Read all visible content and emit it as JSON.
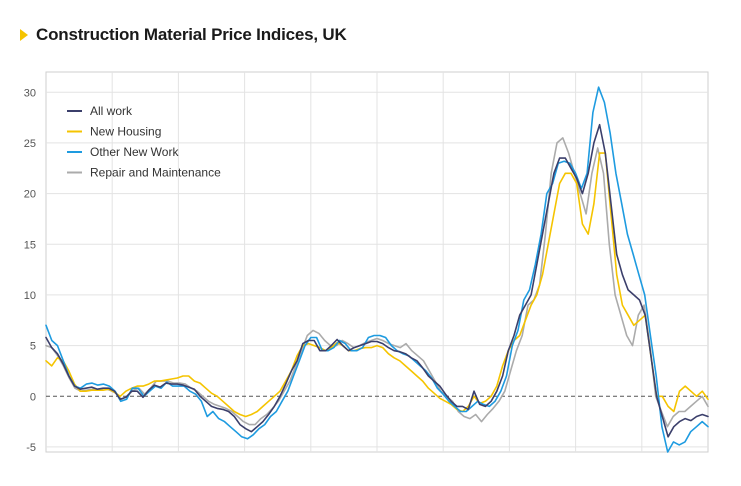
{
  "chart_data": {
    "type": "line",
    "title": "Construction Material Price Indices, UK",
    "xlabel": "",
    "ylabel": "",
    "ylim": [
      -5.5,
      32
    ],
    "yticks": [
      -5,
      0,
      5,
      10,
      15,
      20,
      25,
      30
    ],
    "grid": true,
    "legend_position": "top-left",
    "colors": {
      "All work": "#3b3f6b",
      "New Housing": "#f5c400",
      "Other New Work": "#1e9be0",
      "Repair and Maintenance": "#ababab",
      "zero_line": "#555555",
      "grid": "#e3e3e3",
      "axis": "#cfcfcf"
    },
    "series": [
      {
        "name": "All work",
        "values": [
          5.8,
          4.8,
          4.2,
          3.2,
          2,
          1,
          0.7,
          0.8,
          0.9,
          0.7,
          0.8,
          0.8,
          0.5,
          -0.3,
          -0.1,
          0.5,
          0.5,
          -0.1,
          0.6,
          1.1,
          0.9,
          1.3,
          1.2,
          1.2,
          1.1,
          0.9,
          0.7,
          0,
          -0.5,
          -1,
          -1.2,
          -1.3,
          -1.5,
          -2,
          -2.8,
          -3.2,
          -3.5,
          -3,
          -2.5,
          -1.8,
          -1,
          0,
          1.2,
          2.5,
          3.5,
          5.2,
          5.5,
          5.5,
          4.5,
          4.5,
          5,
          5.6,
          5,
          4.5,
          4.8,
          5,
          5.2,
          5.4,
          5.4,
          5.2,
          4.8,
          4.5,
          4.4,
          4.2,
          3.8,
          3.5,
          2.8,
          2,
          1.5,
          1,
          0.2,
          -0.5,
          -1,
          -1,
          -1.3,
          0.5,
          -0.8,
          -1,
          -0.5,
          0.5,
          2,
          4.5,
          6,
          8,
          9,
          10,
          13,
          16,
          19,
          22,
          23.5,
          23.5,
          22.5,
          21.5,
          20,
          22,
          25,
          26.8,
          24,
          19,
          14,
          12,
          10.5,
          10,
          9.5,
          8,
          4,
          0,
          -2,
          -4,
          -3,
          -2.5,
          -2.2,
          -2.4,
          -2,
          -1.8,
          -2
        ]
      },
      {
        "name": "New Housing",
        "values": [
          3.5,
          3,
          3.8,
          3.5,
          2.5,
          1.2,
          0.5,
          0.5,
          0.6,
          0.6,
          0.6,
          0.7,
          0.4,
          0,
          0.5,
          0.8,
          1,
          1,
          1.2,
          1.5,
          1.5,
          1.6,
          1.7,
          1.8,
          2,
          2,
          1.5,
          1.3,
          0.8,
          0.3,
          0,
          -0.5,
          -1,
          -1.5,
          -1.8,
          -2,
          -1.8,
          -1.5,
          -1,
          -0.5,
          0,
          0.5,
          1.5,
          2.5,
          4,
          5,
          5.2,
          5,
          4.8,
          4.5,
          4.8,
          5.3,
          5,
          4.5,
          4.5,
          4.7,
          4.8,
          4.8,
          5,
          4.8,
          4.2,
          3.8,
          3.5,
          3,
          2.5,
          2,
          1.5,
          0.8,
          0.3,
          -0.2,
          -0.5,
          -0.8,
          -1.3,
          -1.5,
          -1,
          0,
          -0.7,
          -0.5,
          0,
          1,
          3,
          4.5,
          5.5,
          6,
          7.5,
          9,
          10,
          12,
          15,
          18,
          21,
          22,
          22,
          21,
          17,
          16,
          19,
          24,
          24,
          18,
          12,
          9,
          8,
          7,
          7.5,
          8,
          4,
          0,
          0,
          -1,
          -1.5,
          0.5,
          1,
          0.5,
          0,
          0.5,
          -0.3
        ]
      },
      {
        "name": "Other New Work",
        "values": [
          7,
          5.5,
          5,
          3.5,
          2,
          1,
          0.8,
          1.2,
          1.3,
          1.1,
          1.2,
          1,
          0.5,
          -0.5,
          -0.3,
          0.8,
          0.8,
          0,
          0.5,
          1,
          0.8,
          1.4,
          1,
          1,
          1,
          0.5,
          0.2,
          -0.5,
          -2,
          -1.5,
          -2.2,
          -2.5,
          -3,
          -3.5,
          -4,
          -4.2,
          -3.8,
          -3.2,
          -2.8,
          -2,
          -1.5,
          -0.5,
          0.5,
          2,
          3.5,
          5,
          5.8,
          5.8,
          4.5,
          4.5,
          4.8,
          5.5,
          5.2,
          4.5,
          4.5,
          4.8,
          5.8,
          6,
          6,
          5.8,
          5,
          4.5,
          4.2,
          4,
          3.5,
          3,
          2.5,
          1.8,
          0.8,
          0.2,
          -0.5,
          -1,
          -1.5,
          -1.5,
          -1,
          -0.5,
          -0.8,
          -1,
          -0.5,
          0.5,
          2,
          5,
          6.5,
          9.5,
          10.5,
          13,
          16,
          20,
          21,
          23,
          23.2,
          23,
          22,
          20.5,
          22,
          28,
          30.5,
          29,
          26,
          22,
          19,
          16,
          14,
          12,
          10,
          6,
          2,
          -3,
          -5.5,
          -4.5,
          -4.8,
          -4.5,
          -3.5,
          -3,
          -2.5,
          -3
        ]
      },
      {
        "name": "Repair and Maintenance",
        "values": [
          5,
          4.8,
          4,
          3,
          1.8,
          0.8,
          0.5,
          0.6,
          0.7,
          0.6,
          0.8,
          0.6,
          0.3,
          -0.3,
          0,
          0.6,
          0.8,
          0.2,
          0.8,
          1.5,
          1.5,
          1.5,
          1.3,
          1.3,
          1.2,
          0.8,
          0.5,
          0,
          -0.5,
          -0.8,
          -1,
          -1.2,
          -1.5,
          -2,
          -2.5,
          -2.8,
          -2.8,
          -2.2,
          -1.8,
          -1.2,
          -0.5,
          0.5,
          1.5,
          3,
          4.5,
          6,
          6.5,
          6.2,
          5.5,
          5,
          5,
          5.5,
          5.2,
          4.8,
          5,
          5.3,
          5.5,
          5.7,
          5.5,
          5.2,
          5,
          4.8,
          5.2,
          4.5,
          4,
          3.5,
          2.5,
          1.5,
          0.5,
          0,
          -0.5,
          -1.5,
          -2,
          -2.2,
          -1.8,
          -2.5,
          -1.8,
          -1.2,
          -0.5,
          0.5,
          2.5,
          4.5,
          6,
          9,
          9.5,
          11,
          16,
          22,
          25,
          25.5,
          24,
          22,
          20,
          18,
          22,
          24.5,
          22,
          15,
          10,
          8,
          6,
          5,
          8,
          9,
          5,
          0,
          -1.5,
          -3,
          -2,
          -1.5,
          -1.5,
          -1,
          -0.5,
          0,
          -1
        ]
      }
    ]
  }
}
